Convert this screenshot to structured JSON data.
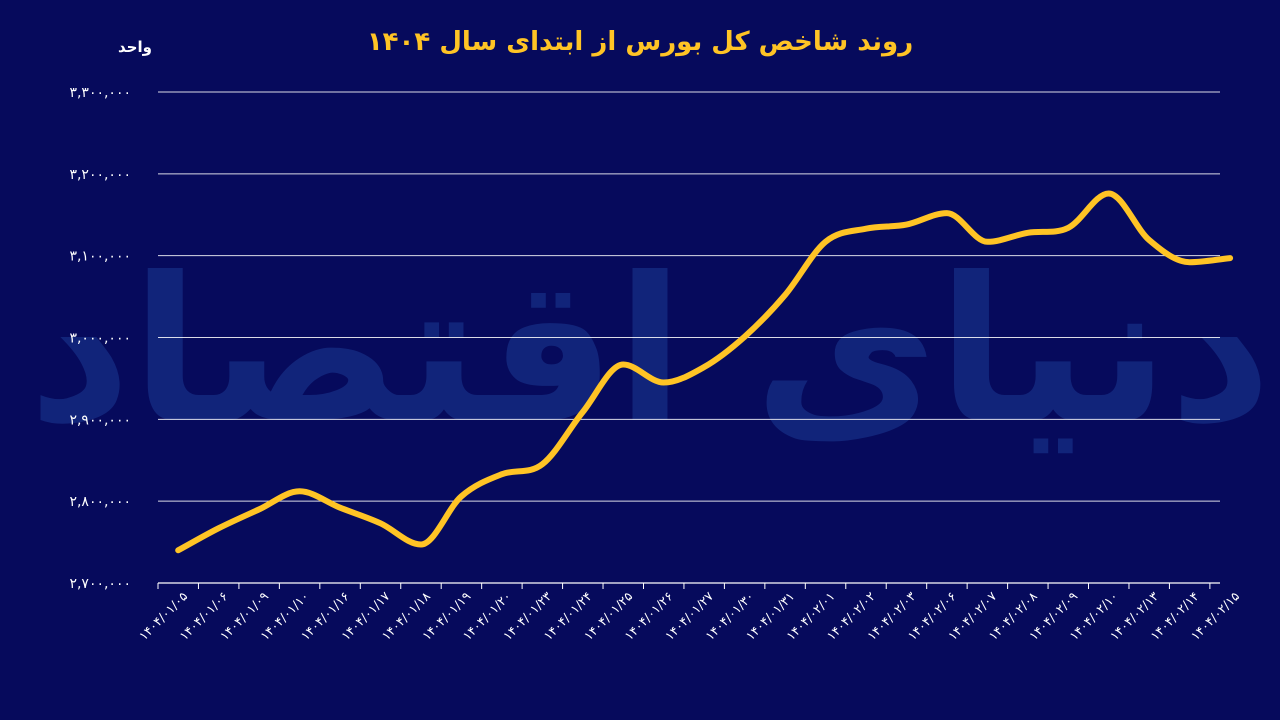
{
  "watermark": {
    "text": "دنیای اقتصاد"
  },
  "chart_data": {
    "type": "line",
    "title": "روند شاخص کل بورس از ابتدای سال ۱۴۰۴",
    "ylabel": "واحد",
    "xlabel": "",
    "ylim": [
      2700000,
      3300000
    ],
    "yticks": [
      2700000,
      2800000,
      2900000,
      3000000,
      3100000,
      3200000,
      3300000
    ],
    "ytick_labels": [
      "۲,۷۰۰,۰۰۰",
      "۲,۸۰۰,۰۰۰",
      "۲,۹۰۰,۰۰۰",
      "۳,۰۰۰,۰۰۰",
      "۳,۱۰۰,۰۰۰",
      "۳,۲۰۰,۰۰۰",
      "۳,۳۰۰,۰۰۰"
    ],
    "grid": true,
    "colors": {
      "background": "#060a5c",
      "line": "#ffc425",
      "title": "#ffc425",
      "text": "#ffffff"
    },
    "categories": [
      "۱۴۰۴/۰۱/۰۵",
      "۱۴۰۴/۰۱/۰۶",
      "۱۴۰۴/۰۱/۰۹",
      "۱۴۰۴/۰۱/۱۰",
      "۱۴۰۴/۰۱/۱۶",
      "۱۴۰۴/۰۱/۱۷",
      "۱۴۰۴/۰۱/۱۸",
      "۱۴۰۴/۰۱/۱۹",
      "۱۴۰۴/۰۱/۲۰",
      "۱۴۰۴/۰۱/۲۳",
      "۱۴۰۴/۰۱/۲۴",
      "۱۴۰۴/۰۱/۲۵",
      "۱۴۰۴/۰۱/۲۶",
      "۱۴۰۴/۰۱/۲۷",
      "۱۴۰۴/۰۱/۳۰",
      "۱۴۰۴/۰۱/۳۱",
      "۱۴۰۴/۰۲/۰۱",
      "۱۴۰۴/۰۲/۰۲",
      "۱۴۰۴/۰۲/۰۳",
      "۱۴۰۴/۰۲/۰۶",
      "۱۴۰۴/۰۲/۰۷",
      "۱۴۰۴/۰۲/۰۸",
      "۱۴۰۴/۰۲/۰۹",
      "۱۴۰۴/۰۲/۱۰",
      "۱۴۰۴/۰۲/۱۳",
      "۱۴۰۴/۰۲/۱۴",
      "۱۴۰۴/۰۲/۱۵"
    ],
    "series": [
      {
        "values": [
          2740000,
          2767000,
          2790000,
          2812000,
          2792000,
          2773000,
          2747000,
          2806000,
          2833000,
          2845000,
          2909000,
          2967000,
          2945000,
          2964000,
          3001000,
          3052000,
          3117000,
          3133000,
          3138000,
          3152000,
          3117000,
          3128000,
          3134000,
          3176000,
          3119000,
          3092000,
          3097000
        ]
      }
    ]
  }
}
